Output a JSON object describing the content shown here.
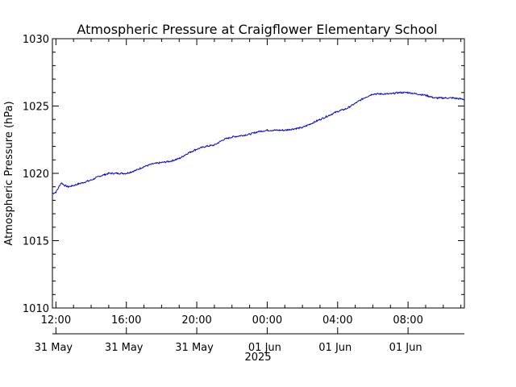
{
  "chart_data": {
    "type": "line",
    "title": "Atmospheric Pressure at Craigflower Elementary School",
    "xlabel": "2025",
    "ylabel": "Atmospheric Pressure (hPa)",
    "ylim": [
      1010,
      1030
    ],
    "yticks": [
      1010,
      1015,
      1020,
      1025,
      1030
    ],
    "xlim_hours": [
      11.8,
      35.2
    ],
    "xticks": [
      {
        "time": "12:00",
        "date": "31 May",
        "hour": 12
      },
      {
        "time": "16:00",
        "date": "31 May",
        "hour": 16
      },
      {
        "time": "20:00",
        "date": "31 May",
        "hour": 20
      },
      {
        "time": "00:00",
        "date": "01 Jun",
        "hour": 24
      },
      {
        "time": "04:00",
        "date": "01 Jun",
        "hour": 28
      },
      {
        "time": "08:00",
        "date": "01 Jun",
        "hour": 32
      }
    ],
    "grid": false,
    "line_color": "#0000cc",
    "series": [
      {
        "name": "",
        "x_hours": [
          11.8,
          12.0,
          12.3,
          12.5,
          12.7,
          13.0,
          13.5,
          14.0,
          14.5,
          15.0,
          15.5,
          16.0,
          16.5,
          17.0,
          17.5,
          18.0,
          18.5,
          19.0,
          19.5,
          20.0,
          20.5,
          21.0,
          21.5,
          22.0,
          22.5,
          23.0,
          23.5,
          24.0,
          24.5,
          25.0,
          25.5,
          26.0,
          26.5,
          27.0,
          27.5,
          28.0,
          28.5,
          29.0,
          29.5,
          30.0,
          30.5,
          31.0,
          31.5,
          32.0,
          32.5,
          33.0,
          33.5,
          34.0,
          34.5,
          35.2
        ],
        "values": [
          1018.5,
          1018.6,
          1019.3,
          1019.1,
          1019.0,
          1019.1,
          1019.3,
          1019.5,
          1019.8,
          1020.0,
          1020.0,
          1020.0,
          1020.2,
          1020.5,
          1020.7,
          1020.8,
          1020.9,
          1021.1,
          1021.5,
          1021.8,
          1022.0,
          1022.1,
          1022.5,
          1022.7,
          1022.8,
          1022.9,
          1023.1,
          1023.2,
          1023.2,
          1023.2,
          1023.3,
          1023.4,
          1023.7,
          1024.0,
          1024.3,
          1024.6,
          1024.8,
          1025.2,
          1025.6,
          1025.9,
          1025.9,
          1025.9,
          1026.0,
          1026.0,
          1025.9,
          1025.8,
          1025.6,
          1025.6,
          1025.6,
          1025.5
        ]
      }
    ]
  }
}
